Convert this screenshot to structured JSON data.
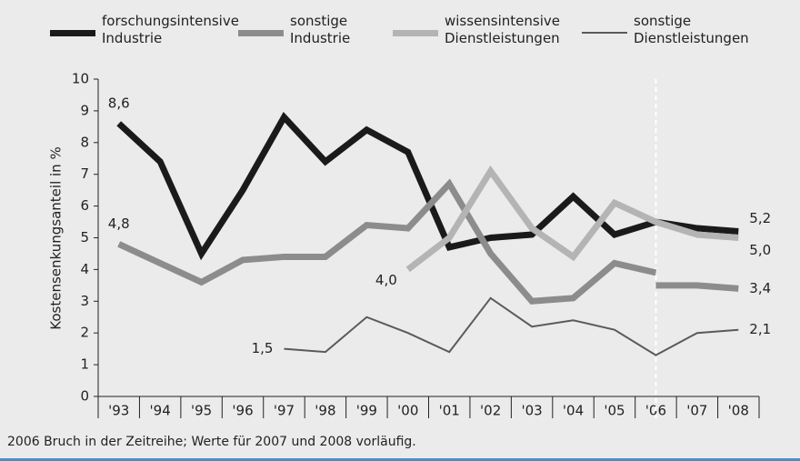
{
  "chart_data": {
    "type": "line",
    "y_label": "Kostensenkungsanteil in %",
    "note": "2006 Bruch in der Zeitreihe; Werte für 2007 und 2008 vorläufig.",
    "categories": [
      "'93",
      "'94",
      "'95",
      "'96",
      "'97",
      "'98",
      "'99",
      "'00",
      "'01",
      "'02",
      "'03",
      "'04",
      "'05",
      "'06",
      "'07",
      "'08"
    ],
    "break_index": 13,
    "ylim": [
      0,
      10
    ],
    "yticks": [
      0,
      1,
      2,
      3,
      4,
      5,
      6,
      7,
      8,
      9,
      10
    ],
    "series": [
      {
        "name": "forschungsintensive Industrie",
        "color": "#1a1a1a",
        "width": 7,
        "values": [
          8.6,
          7.4,
          4.5,
          6.5,
          8.8,
          7.4,
          8.4,
          7.7,
          4.7,
          5.0,
          5.1,
          6.3,
          5.1,
          5.5,
          5.3,
          5.2
        ],
        "value_labels": [
          "8,6",
          null,
          null,
          null,
          null,
          null,
          null,
          null,
          null,
          null,
          null,
          null,
          null,
          null,
          null,
          "5,2"
        ]
      },
      {
        "name": "sonstige Industrie",
        "color": "#8c8c8c",
        "width": 7,
        "values": [
          4.8,
          4.2,
          3.6,
          4.3,
          4.4,
          4.4,
          5.4,
          5.3,
          6.7,
          4.5,
          3.0,
          3.1,
          4.2,
          3.9,
          null,
          null
        ],
        "value_labels": [
          "4,8",
          null,
          null,
          null,
          null,
          null,
          null,
          null,
          null,
          null,
          null,
          null,
          null,
          null,
          null,
          null
        ],
        "values_after_break": [
          null,
          null,
          null,
          null,
          null,
          null,
          null,
          null,
          null,
          null,
          null,
          null,
          null,
          3.5,
          3.5,
          3.4
        ],
        "value_labels_after_break": [
          null,
          null,
          null,
          null,
          null,
          null,
          null,
          null,
          null,
          null,
          null,
          null,
          null,
          null,
          null,
          "3,4"
        ]
      },
      {
        "name": "wissensintensive Dienstleistungen",
        "color": "#b4b4b4",
        "width": 7,
        "values": [
          null,
          null,
          null,
          null,
          null,
          null,
          null,
          4.0,
          5.0,
          7.1,
          5.3,
          4.4,
          6.1,
          5.5,
          5.1,
          5.0
        ],
        "value_labels": [
          null,
          null,
          null,
          null,
          null,
          null,
          null,
          "4,0",
          null,
          null,
          null,
          null,
          null,
          null,
          null,
          "5,0"
        ]
      },
      {
        "name": "sonstige Dienstleistungen",
        "color": "#5a5a5a",
        "width": 2,
        "values": [
          null,
          null,
          null,
          null,
          1.5,
          1.4,
          2.5,
          2.0,
          1.4,
          3.1,
          2.2,
          2.4,
          2.1,
          1.3,
          2.0,
          2.1
        ],
        "value_labels": [
          null,
          null,
          null,
          null,
          "1,5",
          null,
          null,
          null,
          null,
          null,
          null,
          null,
          null,
          null,
          null,
          "2,1"
        ]
      }
    ]
  }
}
